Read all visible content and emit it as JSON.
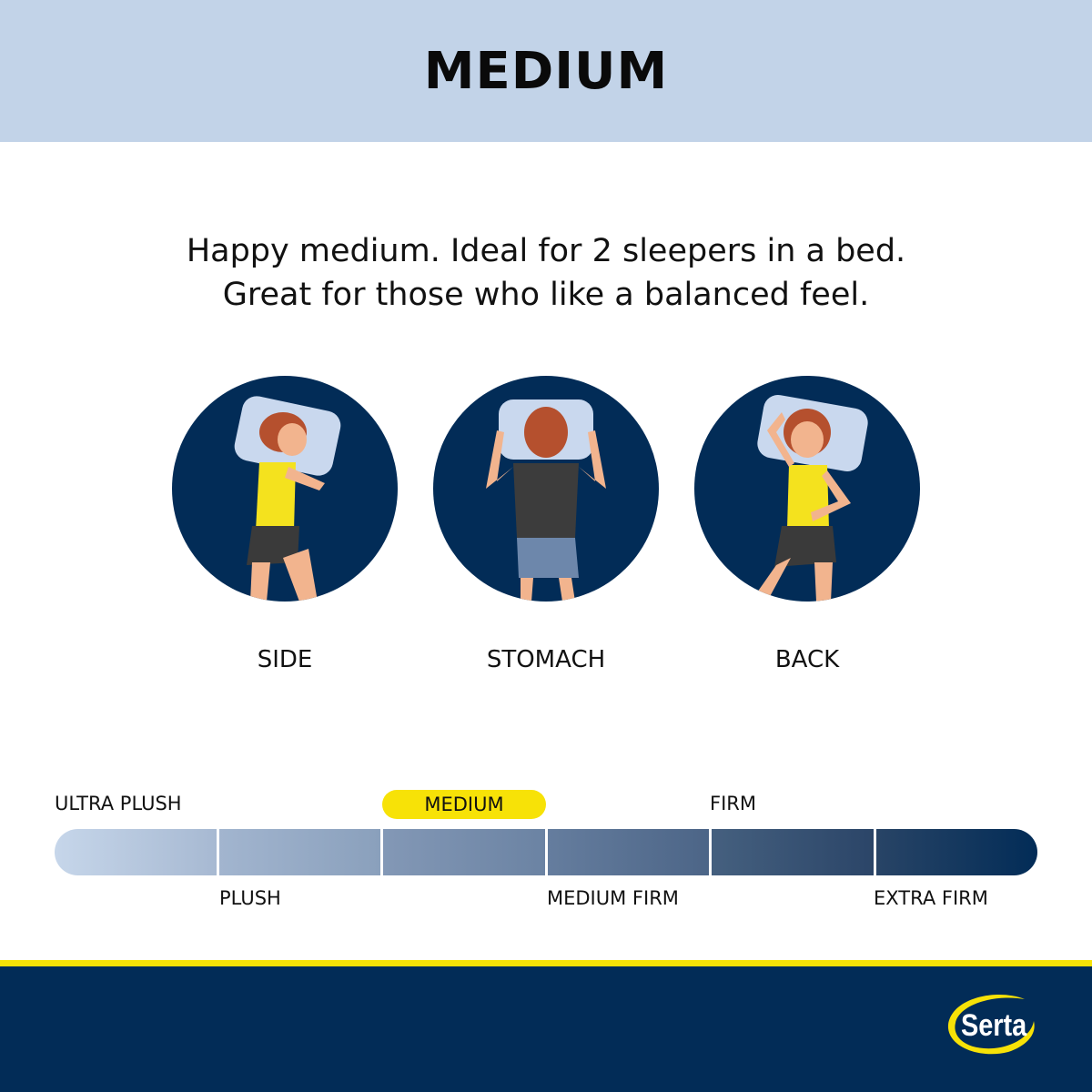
{
  "header": {
    "title": "MEDIUM"
  },
  "tagline": {
    "line1": "Happy medium. Ideal for 2 sleepers in a bed.",
    "line2": "Great for those who like a balanced feel."
  },
  "positions": [
    {
      "label": "SIDE",
      "icon": "side-sleeper-illustration"
    },
    {
      "label": "STOMACH",
      "icon": "stomach-sleeper-illustration"
    },
    {
      "label": "BACK",
      "icon": "back-sleeper-illustration"
    }
  ],
  "firmness_scale": {
    "levels": [
      "ULTRA PLUSH",
      "PLUSH",
      "MEDIUM",
      "MEDIUM FIRM",
      "FIRM",
      "EXTRA FIRM"
    ],
    "selected": "MEDIUM",
    "highlight_color": "#f7e207",
    "segment_colors": [
      "#c2d3e8",
      "#8ea4bf",
      "#6f87a6",
      "#4f6889",
      "#2f4a70",
      "#022c57"
    ]
  },
  "brand": {
    "name": "Serta",
    "colors": {
      "navy": "#022c57",
      "yellow": "#f7e207",
      "header": "#c2d3e8"
    }
  }
}
